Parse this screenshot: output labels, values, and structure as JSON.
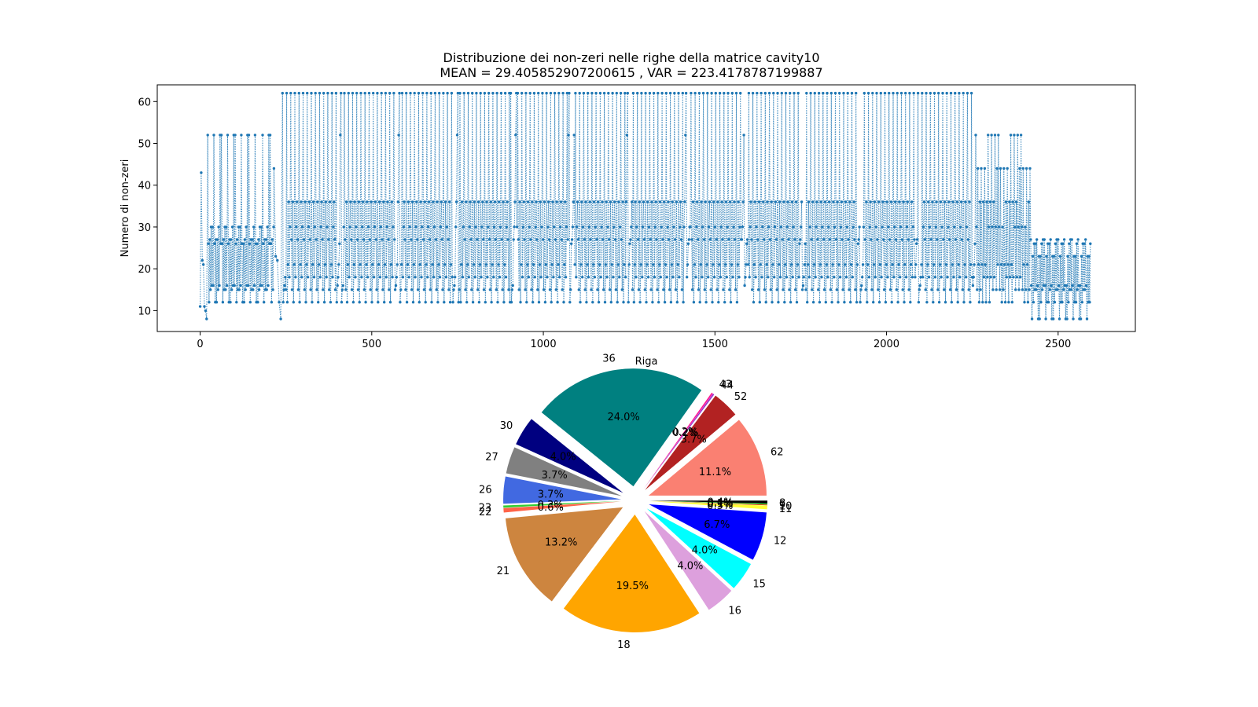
{
  "chart_data": [
    {
      "type": "line",
      "title": "Distribuzione dei non-zeri nelle righe della matrice cavity10",
      "subtitle": "MEAN = 29.405852907200615 , VAR = 223.4178787199887",
      "xlabel": "Riga",
      "ylabel": "Numero di non-zeri",
      "xlim": [
        -125,
        2725
      ],
      "ylim": [
        5,
        64
      ],
      "xticks": [
        0,
        500,
        1000,
        1500,
        2000,
        2500
      ],
      "yticks": [
        10,
        20,
        30,
        40,
        50,
        60
      ],
      "grid": false,
      "series": [
        {
          "color": "#1f77b4",
          "marker": "dot",
          "linestyle": "dotted",
          "segments": [
            {
              "x_start": 0,
              "x_end": 22,
              "values": [
                11,
                43,
                22,
                21,
                11,
                10,
                8
              ]
            },
            {
              "x_start": 22,
              "x_end": 215,
              "values": [
                52,
                30,
                27,
                26,
                16,
                15,
                12
              ],
              "period": 13
            },
            {
              "x_start": 215,
              "x_end": 240,
              "values": [
                44,
                23,
                22,
                12,
                8
              ]
            },
            {
              "x_start": 240,
              "x_end": 2260,
              "values": [
                62,
                52,
                36,
                30,
                27,
                26,
                21,
                18,
                16,
                15,
                12
              ],
              "blocks": 12,
              "block_top": 62,
              "block_mid": 36
            },
            {
              "x_start": 2260,
              "x_end": 2420,
              "values": [
                52,
                44,
                36,
                30,
                21,
                18,
                15,
                12
              ],
              "period": 13
            },
            {
              "x_start": 2420,
              "x_end": 2596,
              "values": [
                27,
                26,
                23,
                16,
                15,
                12,
                8
              ],
              "period": 13
            }
          ]
        }
      ]
    },
    {
      "type": "pie",
      "slices": [
        {
          "label": "62",
          "percent": 11.1,
          "pct_label": "11.1%",
          "color": "#fa8072"
        },
        {
          "label": "52",
          "percent": 3.7,
          "pct_label": "3.7%",
          "color": "#b22222"
        },
        {
          "label": "44",
          "percent": 0.2,
          "pct_label": "0.2%",
          "color": "#9932cc"
        },
        {
          "label": "43",
          "percent": 0.2,
          "pct_label": "0.2%",
          "color": "#ff1493"
        },
        {
          "label": "36",
          "percent": 24.0,
          "pct_label": "24.0%",
          "color": "#008080"
        },
        {
          "label": "30",
          "percent": 4.0,
          "pct_label": "4.0%",
          "color": "#000080"
        },
        {
          "label": "27",
          "percent": 3.7,
          "pct_label": "3.7%",
          "color": "#808080"
        },
        {
          "label": "26",
          "percent": 3.7,
          "pct_label": "3.7%",
          "color": "#4169e1"
        },
        {
          "label": "23",
          "percent": 0.3,
          "pct_label": "0.3%",
          "color": "#32cd32"
        },
        {
          "label": "22",
          "percent": 0.6,
          "pct_label": "0.6%",
          "color": "#ff6347"
        },
        {
          "label": "21",
          "percent": 13.2,
          "pct_label": "13.2%",
          "color": "#cd853f"
        },
        {
          "label": "18",
          "percent": 19.5,
          "pct_label": "19.5%",
          "color": "#ffa500"
        },
        {
          "label": "16",
          "percent": 4.0,
          "pct_label": "4.0%",
          "color": "#dda0dd"
        },
        {
          "label": "15",
          "percent": 4.0,
          "pct_label": "4.0%",
          "color": "#00ffff"
        },
        {
          "label": "12",
          "percent": 6.7,
          "pct_label": "6.7%",
          "color": "#0000ff"
        },
        {
          "label": "11",
          "percent": 0.5,
          "pct_label": "0.5%",
          "color": "#ffff33"
        },
        {
          "label": "10",
          "percent": 0.1,
          "pct_label": "0.1%",
          "color": "#ff0000"
        },
        {
          "label": "9",
          "percent": 0.1,
          "pct_label": "0.1%",
          "color": "#00ff00"
        },
        {
          "label": "8",
          "percent": 0.4,
          "pct_label": "0.4%",
          "color": "#000000"
        }
      ]
    }
  ]
}
